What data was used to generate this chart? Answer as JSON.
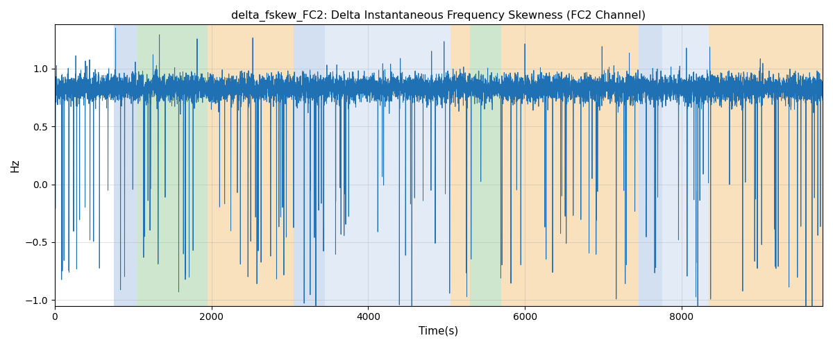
{
  "title": "delta_fskew_FC2: Delta Instantaneous Frequency Skewness (FC2 Channel)",
  "xlabel": "Time(s)",
  "ylabel": "Hz",
  "xlim": [
    0,
    9800
  ],
  "ylim": [
    -1.05,
    1.38
  ],
  "yticks": [
    -1.0,
    -0.5,
    0.0,
    0.5,
    1.0
  ],
  "line_color": "#2070b4",
  "line_width": 0.7,
  "background_regions": [
    {
      "xmin": 750,
      "xmax": 1050,
      "color": "#adc8e8",
      "alpha": 0.55
    },
    {
      "xmin": 1050,
      "xmax": 1950,
      "color": "#90c990",
      "alpha": 0.45
    },
    {
      "xmin": 1950,
      "xmax": 3050,
      "color": "#f5c98a",
      "alpha": 0.55
    },
    {
      "xmin": 3050,
      "xmax": 3450,
      "color": "#adc8e8",
      "alpha": 0.55
    },
    {
      "xmin": 3450,
      "xmax": 5050,
      "color": "#adc8e8",
      "alpha": 0.35
    },
    {
      "xmin": 5050,
      "xmax": 5300,
      "color": "#f5c98a",
      "alpha": 0.55
    },
    {
      "xmin": 5300,
      "xmax": 5700,
      "color": "#90c990",
      "alpha": 0.45
    },
    {
      "xmin": 5700,
      "xmax": 7450,
      "color": "#f5c98a",
      "alpha": 0.55
    },
    {
      "xmin": 7450,
      "xmax": 7750,
      "color": "#adc8e8",
      "alpha": 0.55
    },
    {
      "xmin": 7750,
      "xmax": 8350,
      "color": "#adc8e8",
      "alpha": 0.35
    },
    {
      "xmin": 8350,
      "xmax": 9800,
      "color": "#f5c98a",
      "alpha": 0.55
    }
  ],
  "xticks": [
    0,
    2000,
    4000,
    6000,
    8000
  ],
  "grid_color": "#aaaaaa",
  "grid_alpha": 0.5,
  "seed": 12345,
  "n_points": 9800,
  "spike_rate": 0.015,
  "base_mean": 0.83,
  "base_std": 0.06
}
